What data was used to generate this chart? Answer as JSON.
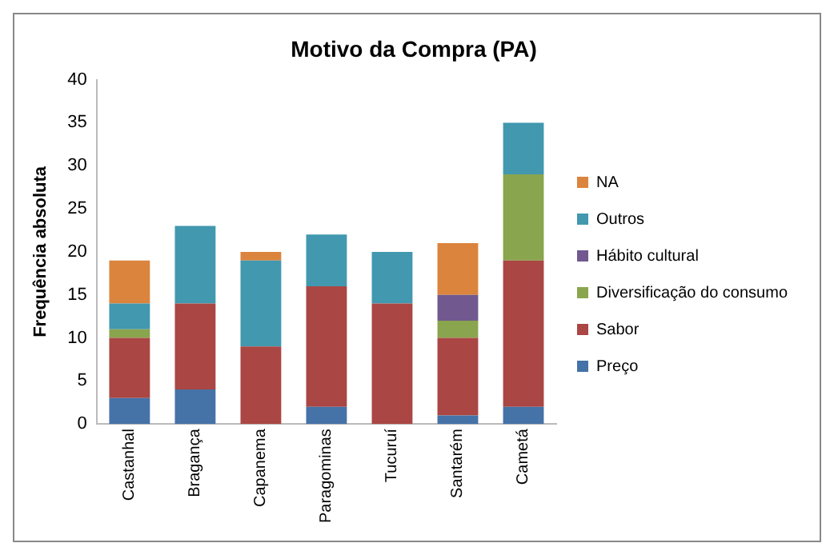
{
  "chart_data": {
    "type": "bar",
    "title": "Motivo da Compra (PA)",
    "ylabel": "Frequência absoluta",
    "stacked": true,
    "legend": "right",
    "grid": false,
    "categories": [
      "Castanhal",
      "Bragança",
      "Capanema",
      "Paragominas",
      "Tucuruí",
      "Santarém",
      "Cametá"
    ],
    "ylim": [
      0,
      40
    ],
    "yticks": [
      0,
      5,
      10,
      15,
      20,
      25,
      30,
      35,
      40
    ],
    "series": [
      {
        "name": "Preço",
        "color": "#4572a7",
        "values": [
          3,
          4,
          0,
          2,
          0,
          1,
          2
        ]
      },
      {
        "name": "Sabor",
        "color": "#aa4643",
        "values": [
          7,
          10,
          9,
          14,
          14,
          9,
          17
        ]
      },
      {
        "name": "Diversificação do consumo",
        "color": "#89a54e",
        "values": [
          1,
          0,
          0,
          0,
          0,
          2,
          10
        ]
      },
      {
        "name": "Hábito cultural",
        "color": "#71588f",
        "values": [
          0,
          0,
          0,
          0,
          0,
          3,
          0
        ]
      },
      {
        "name": "Outros",
        "color": "#4198af",
        "values": [
          3,
          9,
          10,
          6,
          6,
          0,
          6
        ]
      },
      {
        "name": "NA",
        "color": "#db843d",
        "values": [
          5,
          0,
          1,
          0,
          0,
          6,
          0
        ]
      }
    ]
  }
}
